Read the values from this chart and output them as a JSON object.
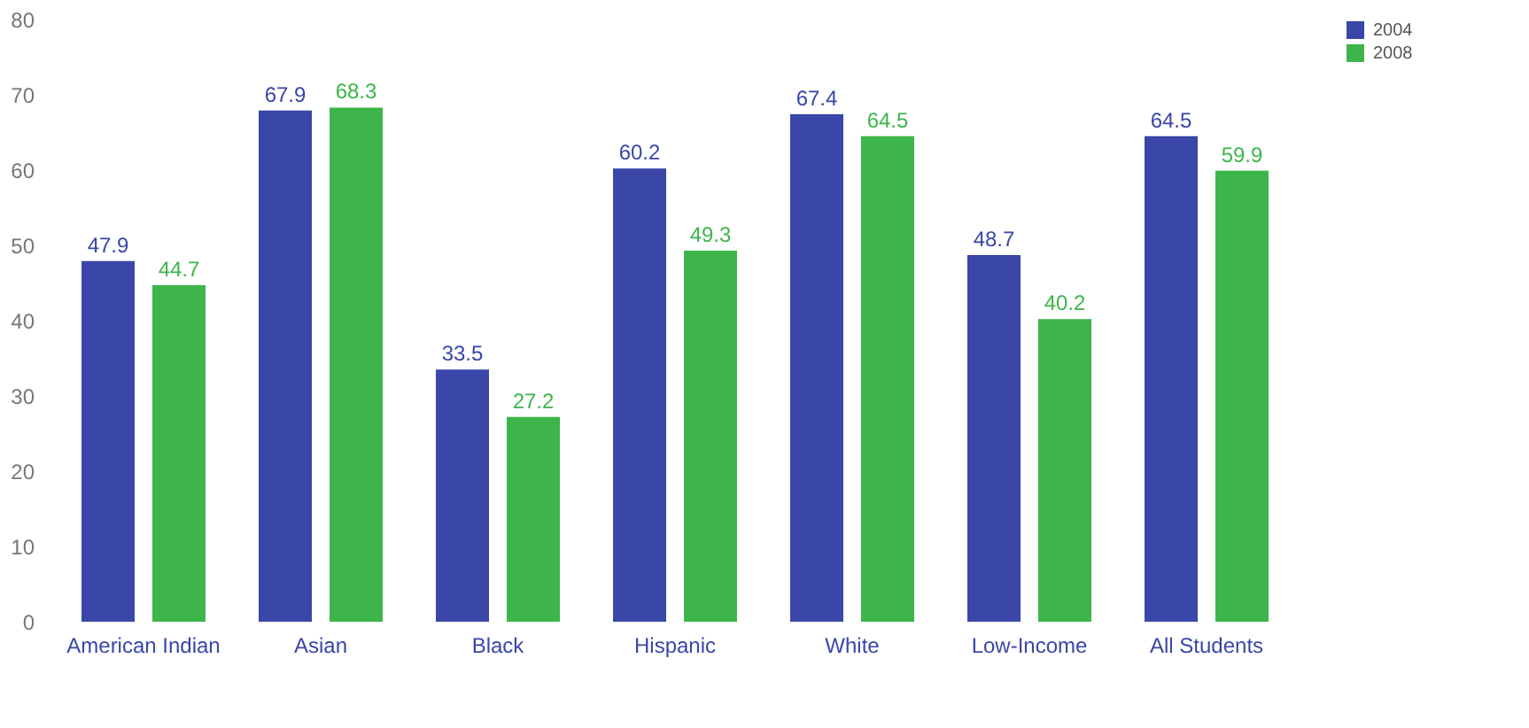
{
  "chart_data": {
    "type": "bar",
    "categories": [
      "American Indian",
      "Asian",
      "Black",
      "Hispanic",
      "White",
      "Low-Income",
      "All Students"
    ],
    "series": [
      {
        "name": "2004",
        "color": "#3a46a8",
        "values": [
          47.9,
          67.9,
          33.5,
          60.2,
          67.4,
          48.7,
          64.5
        ]
      },
      {
        "name": "2008",
        "color": "#3db54a",
        "values": [
          44.7,
          68.3,
          27.2,
          49.3,
          64.5,
          40.2,
          59.9
        ]
      }
    ],
    "ylim": [
      0,
      80
    ],
    "yticks": [
      0,
      10,
      20,
      30,
      40,
      50,
      60,
      70,
      80
    ],
    "grid": false,
    "legend": "right",
    "data_labels": true
  }
}
